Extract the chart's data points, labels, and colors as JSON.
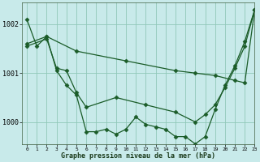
{
  "title": "Graphe pression niveau de la mer (hPa)",
  "bg_color": "#c8eaea",
  "grid_color": "#90c8b8",
  "line_color": "#1a5c28",
  "xlim": [
    -0.5,
    23
  ],
  "ylim": [
    999.55,
    1002.45
  ],
  "yticks": [
    1000,
    1001,
    1002
  ],
  "xticks": [
    0,
    1,
    2,
    3,
    4,
    5,
    6,
    7,
    8,
    9,
    10,
    11,
    12,
    13,
    14,
    15,
    16,
    17,
    18,
    19,
    20,
    21,
    22,
    23
  ],
  "series_jagged": {
    "x": [
      0,
      1,
      2,
      3,
      4,
      5,
      6,
      7,
      8,
      9,
      10,
      11,
      12,
      13,
      14,
      15,
      16,
      17,
      18,
      19,
      20,
      21,
      22,
      23
    ],
    "y": [
      1002.1,
      1001.55,
      1001.75,
      1001.05,
      1000.75,
      1000.55,
      999.8,
      999.8,
      999.85,
      999.75,
      999.85,
      1000.1,
      999.95,
      999.9,
      999.85,
      999.7,
      999.7,
      999.55,
      999.7,
      1000.25,
      1000.75,
      1001.15,
      1001.65,
      1002.3
    ]
  },
  "series_diagonal_up": {
    "x": [
      0,
      2,
      5,
      10,
      15,
      17,
      19,
      21,
      22,
      23
    ],
    "y": [
      1001.6,
      1001.75,
      1001.45,
      1001.25,
      1001.05,
      1001.0,
      1000.95,
      1000.85,
      1000.8,
      1002.3
    ]
  },
  "series_diagonal_down": {
    "x": [
      0,
      2,
      3,
      4,
      5,
      6,
      9,
      12,
      15,
      17,
      18,
      19,
      20,
      21,
      22,
      23
    ],
    "y": [
      1001.55,
      1001.7,
      1001.1,
      1001.05,
      1000.6,
      1000.3,
      1000.5,
      1000.35,
      1000.2,
      1000.0,
      1000.15,
      1000.35,
      1000.7,
      1001.1,
      1001.55,
      1002.3
    ]
  }
}
